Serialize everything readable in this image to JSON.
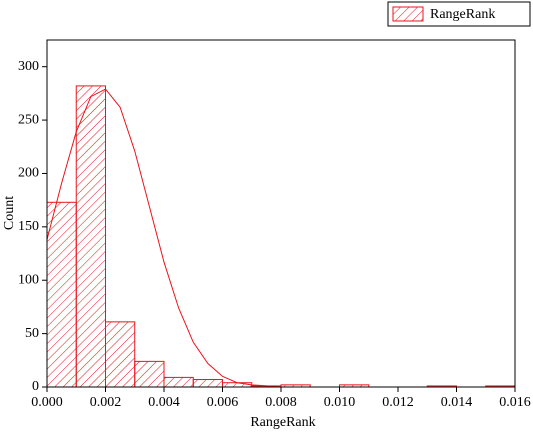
{
  "chart_data": {
    "type": "histogram",
    "x_label": "RangeRank",
    "y_label": "Count",
    "bins": [
      0,
      0.001,
      0.002,
      0.003,
      0.004,
      0.005,
      0.006,
      0.007,
      0.008,
      0.009,
      0.01,
      0.011,
      0.012,
      0.013,
      0.014,
      0.015,
      0.016
    ],
    "series": [
      {
        "name": "RangeRank",
        "color": "#e8141c",
        "values": [
          173,
          282,
          61,
          24,
          9,
          7,
          4,
          1,
          2,
          0,
          2,
          0,
          0,
          1,
          0,
          1
        ]
      }
    ],
    "fit": {
      "color": "#e8141c",
      "x": [
        0,
        0.0005,
        0.001,
        0.0015,
        0.002,
        0.0025,
        0.003,
        0.0035,
        0.004,
        0.0045,
        0.005,
        0.0055,
        0.006,
        0.0065,
        0.007,
        0.0075,
        0.008,
        0.016
      ],
      "y": [
        138,
        191,
        239,
        272,
        279,
        262,
        221,
        169,
        117,
        74,
        42,
        22,
        10,
        4,
        2,
        1,
        0,
        0
      ]
    },
    "xlim": [
      0,
      0.016
    ],
    "xticks": [
      {
        "value": 0,
        "label": "0.000"
      },
      {
        "value": 0.002,
        "label": "0.002"
      },
      {
        "value": 0.004,
        "label": "0.004"
      },
      {
        "value": 0.006,
        "label": "0.006"
      },
      {
        "value": 0.008,
        "label": "0.008"
      },
      {
        "value": 0.01,
        "label": "0.010"
      },
      {
        "value": 0.012,
        "label": "0.012"
      },
      {
        "value": 0.014,
        "label": "0.014"
      },
      {
        "value": 0.016,
        "label": "0.016"
      }
    ],
    "ylim": [
      0,
      325
    ],
    "yticks": [
      0,
      50,
      100,
      150,
      200,
      250,
      300
    ],
    "legend": "top-right"
  }
}
